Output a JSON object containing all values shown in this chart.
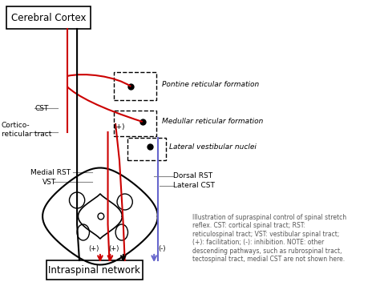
{
  "bg_color": "#ffffff",
  "title_cortex": "Cerebral Cortex",
  "title_intraspinal": "Intraspinal network",
  "label_CST": "CST",
  "label_cortico": "Cortico-\nreticular tract",
  "label_pontine": "Pontine reticular formation",
  "label_medullar": "Medullar reticular formation",
  "label_lateral": "Lateral vestibular nuclei",
  "label_medial_RST": "Medial RST",
  "label_VST": "VST",
  "label_dorsal_RST": "Dorsal RST",
  "label_lateral_CST": "Lateral CST",
  "label_plus1": "(+)",
  "label_plus2": "(+)",
  "label_plus3": "(+)",
  "label_minus": "(-)",
  "caption": "Illustration of supraspinal control of spinal stretch\nreflex. CST: cortical spinal tract; RST:\nreticulospinal tract; VST: vestibular spinal tract;\n(+): facilitation; (-): inhibition. NOTE: other\ndescending pathways, such as rubrospinal tract,\ntectospinal tract, medial CST are not shown here.",
  "red_color": "#cc0000",
  "black_color": "#000000",
  "blue_color": "#6666cc",
  "gray_color": "#888888",
  "dark_red": "#cc0000"
}
